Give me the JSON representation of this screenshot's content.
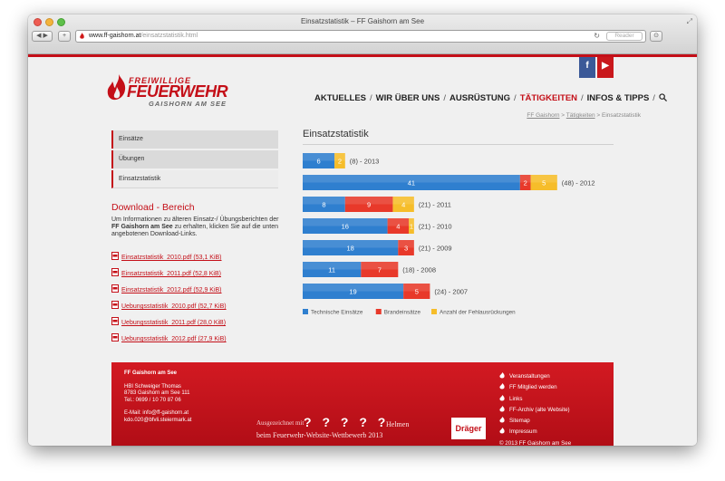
{
  "window": {
    "title": "Einsatzstatistik – FF Gaishorn am See",
    "url_host": "www.ff-gaishorn.at",
    "url_path": "/einsatzstatistik.html",
    "reader_label": "Reader"
  },
  "social": {
    "facebook": "f",
    "youtube": "▶"
  },
  "logo": {
    "line1": "FREIWILLIGE",
    "line2": "FEUERWEHR",
    "line3": "GAISHORN AM SEE"
  },
  "nav": {
    "items": [
      {
        "label": "AKTUELLES"
      },
      {
        "label": "WIR ÜBER UNS"
      },
      {
        "label": "AUSRÜSTUNG"
      },
      {
        "label": "TÄTIGKEITEN"
      },
      {
        "label": "INFOS & TIPPS"
      }
    ],
    "separator": "/",
    "active_color": "#c40f18"
  },
  "breadcrumb": {
    "home": "FF Gaishorn",
    "sep1": ">",
    "parent": "Tätigkeiten",
    "sep2": ">",
    "current": "Einsatzstatistik"
  },
  "sidebar": {
    "items": [
      {
        "label": "Einsätze"
      },
      {
        "label": "Übungen"
      },
      {
        "label": "Einsatzstatistik"
      }
    ]
  },
  "download": {
    "heading": "Download - Bereich",
    "text_before": "Um Informationen zu älteren Einsatz-/ Übungsberichten der ",
    "text_bold": "FF Gaishorn am See",
    "text_after": " zu erhalten, klicken Sie auf die unten angebotenen Download-Links.",
    "files": [
      {
        "label": "Einsatzstatistik_2010.pdf (53,1 KiB)"
      },
      {
        "label": "Einsatzstatistik_2011.pdf (52,8 KiB)"
      },
      {
        "label": "Einsatzstatistik_2012.pdf (52,9 KiB)"
      },
      {
        "label": "Uebungsstatistik_2010.pdf (52,7 KiB)"
      },
      {
        "label": "Uebungsstatistik_2011.pdf (28,0 KiB)"
      },
      {
        "label": "Uebungsstatistik_2012.pdf (27,9 KiB)"
      }
    ]
  },
  "content": {
    "title": "Einsatzstatistik"
  },
  "chart_data": {
    "type": "bar",
    "orientation": "horizontal",
    "stacked": true,
    "rows": [
      {
        "technisch": 6,
        "brand": 0,
        "fehl": 2,
        "label": "(8) - 2013"
      },
      {
        "technisch": 41,
        "brand": 2,
        "fehl": 5,
        "label": "(48) - 2012"
      },
      {
        "technisch": 8,
        "brand": 9,
        "fehl": 4,
        "label": "(21) - 2011"
      },
      {
        "technisch": 16,
        "brand": 4,
        "fehl": 1,
        "label": "(21) - 2010"
      },
      {
        "technisch": 18,
        "brand": 3,
        "fehl": 0,
        "label": "(21) - 2009"
      },
      {
        "technisch": 11,
        "brand": 7,
        "fehl": 0,
        "label": "(18) - 2008"
      },
      {
        "technisch": 19,
        "brand": 5,
        "fehl": 0,
        "label": "(24) - 2007"
      }
    ],
    "series": [
      {
        "key": "technisch",
        "name": "Technische Einsätze",
        "color": "#2f7fcf"
      },
      {
        "key": "brand",
        "name": "Brandeinsätze",
        "color": "#e8392a"
      },
      {
        "key": "fehl",
        "name": "Anzahl der Fehlausrückungen",
        "color": "#f6bd2a"
      }
    ],
    "legend": "bottom-left"
  },
  "footer": {
    "org_name": "FF Gaishorn am See",
    "contact_name": "HBI Schweiger Thomas",
    "street": "8783 Gaishorn am See 111",
    "phone": "Tel.: 0699 / 10 70 87 06",
    "email1": "E-Mail: info@ff-gaishorn.at",
    "email2": "kdo.020@bfvli.steiermark.at",
    "award_prefix": "Ausgezeichnet mit",
    "helmets": "? ? ? ? ?",
    "helmen_word": "Helmen",
    "award_line2": "beim Feuerwehr-Website-Wettbewerb 2013",
    "sponsor": "Dräger",
    "links": [
      {
        "label": "Veranstaltungen"
      },
      {
        "label": "FF Mitglied werden"
      },
      {
        "label": "Links"
      },
      {
        "label": "FF-Archiv (alte Website)"
      },
      {
        "label": "Sitemap"
      },
      {
        "label": "Impressum"
      }
    ],
    "copyright": "© 2013 FF Gaishorn am See"
  }
}
